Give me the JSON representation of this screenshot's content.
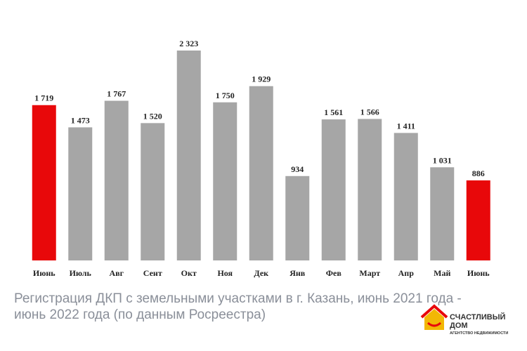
{
  "chart_data": {
    "type": "bar",
    "categories": [
      "Июнь",
      "Июль",
      "Авг",
      "Сент",
      "Окт",
      "Ноя",
      "Дек",
      "Янв",
      "Фев",
      "Март",
      "Апр",
      "Май",
      "Июнь"
    ],
    "values": [
      1719,
      1473,
      1767,
      1520,
      2323,
      1750,
      1929,
      934,
      1561,
      1566,
      1411,
      1031,
      886
    ],
    "value_labels": [
      "1 719",
      "1 473",
      "1 767",
      "1 520",
      "2 323",
      "1 750",
      "1 929",
      "934",
      "1 561",
      "1 566",
      "1 411",
      "1 031",
      "886"
    ],
    "colors": [
      "#e8080a",
      "#a6a6a6",
      "#a6a6a6",
      "#a6a6a6",
      "#a6a6a6",
      "#a6a6a6",
      "#a6a6a6",
      "#a6a6a6",
      "#a6a6a6",
      "#a6a6a6",
      "#a6a6a6",
      "#a6a6a6",
      "#e8080a"
    ],
    "title_lines": [
      "Регистрация ДКП с земельными участками в г. Казань, июнь 2021 года -",
      "июнь 2022 года (по данным Росреестра)"
    ]
  },
  "logo": {
    "name_lines": [
      "СЧАСТЛИВЫЙ",
      "ДОМ"
    ],
    "tagline": "АГЕНТСТВО НЕДВИЖИМОСТИ"
  }
}
